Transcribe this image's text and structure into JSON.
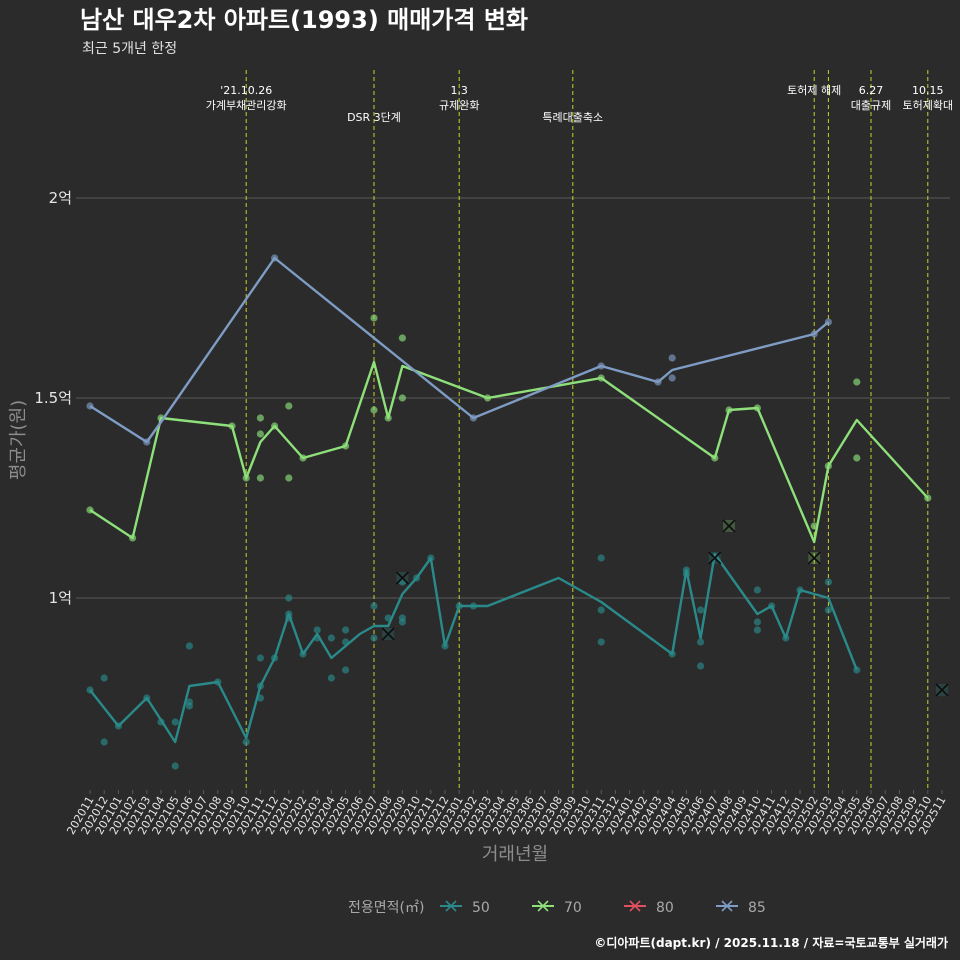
{
  "title": "남산 대우2차 아파트(1993) 매매가격 변화",
  "subtitle": "최근 5개년 한정",
  "caption": "©디아파트(dapt.kr) / 2025.11.18 / 자료=국토교통부 실거래가",
  "colors": {
    "background": "#2b2b2b",
    "grid": "#5a5a5a",
    "event_line": "#c8d22a",
    "s50": "#2a8a8a",
    "s70": "#8ee07a",
    "s80": "#e05060",
    "s85": "#7f9cc4"
  },
  "chart_data": {
    "type": "line",
    "title": "남산 대우2차 아파트(1993) 매매가격 변화",
    "xlabel": "거래년월",
    "ylabel": "평균가(원)",
    "ylim": [
      0.52,
      2.32
    ],
    "yunit": "억",
    "yticks": [
      {
        "value": 1.0,
        "label": "1억"
      },
      {
        "value": 1.5,
        "label": "1.5억"
      },
      {
        "value": 2.0,
        "label": "2억"
      }
    ],
    "categories": [
      "202011",
      "202012",
      "202101",
      "202102",
      "202103",
      "202104",
      "202105",
      "202106",
      "202107",
      "202108",
      "202109",
      "202110",
      "202111",
      "202112",
      "202201",
      "202202",
      "202203",
      "202204",
      "202205",
      "202206",
      "202207",
      "202208",
      "202209",
      "202210",
      "202211",
      "202212",
      "202301",
      "202302",
      "202303",
      "202304",
      "202305",
      "202306",
      "202307",
      "202308",
      "202309",
      "202310",
      "202311",
      "202312",
      "202401",
      "202402",
      "202403",
      "202404",
      "202405",
      "202406",
      "202407",
      "202408",
      "202409",
      "202410",
      "202411",
      "202412",
      "202501",
      "202502",
      "202503",
      "202504",
      "202505",
      "202506",
      "202507",
      "202508",
      "202509",
      "202510",
      "202511"
    ],
    "events": [
      {
        "x": "202110",
        "lines": [
          "'21.10.26",
          "가계부채관리강화"
        ],
        "row": 0
      },
      {
        "x": "202207",
        "lines": [
          "DSR 3단계"
        ],
        "row": 1
      },
      {
        "x": "202301",
        "lines": [
          "1.3",
          "규제완화"
        ],
        "row": 0
      },
      {
        "x": "202309",
        "lines": [
          "특례대출축소"
        ],
        "row": 1
      },
      {
        "x": "202502",
        "lines": [
          "토허제 해제"
        ],
        "row": 0
      },
      {
        "x": "202503",
        "lines": [],
        "row": 0
      },
      {
        "x": "202506",
        "lines": [
          "6.27",
          "대출규제"
        ],
        "row": 0
      },
      {
        "x": "202510",
        "lines": [
          "10.15",
          "토허제확대"
        ],
        "row": 0
      }
    ],
    "legend_title": "전용면적(㎡)",
    "series": [
      {
        "name": "50",
        "line": [
          [
            "202011",
            0.77
          ],
          [
            "202101",
            0.68
          ],
          [
            "202103",
            0.75
          ],
          [
            "202105",
            0.64
          ],
          [
            "202106",
            0.78
          ],
          [
            "202108",
            0.79
          ],
          [
            "202110",
            0.65
          ],
          [
            "202111",
            0.78
          ],
          [
            "202112",
            0.85
          ],
          [
            "202201",
            0.96
          ],
          [
            "202202",
            0.86
          ],
          [
            "202203",
            0.91
          ],
          [
            "202204",
            0.85
          ],
          [
            "202205",
            0.88
          ],
          [
            "202206",
            0.91
          ],
          [
            "202207",
            0.93
          ],
          [
            "202208",
            0.93
          ],
          [
            "202209",
            1.01
          ],
          [
            "202210",
            1.05
          ],
          [
            "202211",
            1.1
          ],
          [
            "202212",
            0.88
          ],
          [
            "202301",
            0.98
          ],
          [
            "202302",
            0.98
          ],
          [
            "202303",
            0.98
          ],
          [
            "202308",
            1.05
          ],
          [
            "202311",
            0.99
          ],
          [
            "202404",
            0.86
          ],
          [
            "202405",
            1.07
          ],
          [
            "202406",
            0.9
          ],
          [
            "202407",
            1.11
          ],
          [
            "202410",
            0.96
          ],
          [
            "202411",
            0.98
          ],
          [
            "202412",
            0.9
          ],
          [
            "202501",
            1.02
          ],
          [
            "202503",
            1.0
          ],
          [
            "202505",
            0.82
          ]
        ],
        "points": [
          [
            "202011",
            0.77
          ],
          [
            "202012",
            0.8
          ],
          [
            "202012",
            0.64
          ],
          [
            "202101",
            0.68
          ],
          [
            "202103",
            0.75
          ],
          [
            "202104",
            0.69
          ],
          [
            "202105",
            0.69
          ],
          [
            "202105",
            0.58
          ],
          [
            "202106",
            0.88
          ],
          [
            "202106",
            0.74
          ],
          [
            "202106",
            0.73
          ],
          [
            "202108",
            0.79
          ],
          [
            "202110",
            0.64
          ],
          [
            "202111",
            0.85
          ],
          [
            "202111",
            0.75
          ],
          [
            "202111",
            0.78
          ],
          [
            "202112",
            0.85
          ],
          [
            "202201",
            1.0
          ],
          [
            "202201",
            0.96
          ],
          [
            "202201",
            0.95
          ],
          [
            "202202",
            0.86
          ],
          [
            "202203",
            0.92
          ],
          [
            "202203",
            0.9
          ],
          [
            "202204",
            0.9
          ],
          [
            "202204",
            0.8
          ],
          [
            "202205",
            0.92
          ],
          [
            "202205",
            0.89
          ],
          [
            "202205",
            0.82
          ],
          [
            "202207",
            0.98
          ],
          [
            "202207",
            0.9
          ],
          [
            "202208",
            0.95
          ],
          [
            "202209",
            1.04
          ],
          [
            "202209",
            0.95
          ],
          [
            "202209",
            0.94
          ],
          [
            "202210",
            1.05
          ],
          [
            "202211",
            1.1
          ],
          [
            "202212",
            0.88
          ],
          [
            "202301",
            0.98
          ],
          [
            "202302",
            0.98
          ],
          [
            "202311",
            1.1
          ],
          [
            "202311",
            0.97
          ],
          [
            "202311",
            0.89
          ],
          [
            "202404",
            0.86
          ],
          [
            "202405",
            1.07
          ],
          [
            "202405",
            1.06
          ],
          [
            "202406",
            0.97
          ],
          [
            "202406",
            0.89
          ],
          [
            "202406",
            0.83
          ],
          [
            "202410",
            1.02
          ],
          [
            "202410",
            0.94
          ],
          [
            "202410",
            0.92
          ],
          [
            "202411",
            0.98
          ],
          [
            "202412",
            0.9
          ],
          [
            "202501",
            1.02
          ],
          [
            "202503",
            1.04
          ],
          [
            "202503",
            0.97
          ],
          [
            "202505",
            0.82
          ]
        ],
        "cancelled": [
          [
            "202208",
            0.91
          ],
          [
            "202209",
            1.05
          ],
          [
            "202407",
            1.1
          ],
          [
            "202511",
            0.77
          ]
        ]
      },
      {
        "name": "70",
        "line": [
          [
            "202011",
            1.22
          ],
          [
            "202102",
            1.15
          ],
          [
            "202104",
            1.45
          ],
          [
            "202109",
            1.43
          ],
          [
            "202110",
            1.3
          ],
          [
            "202111",
            1.39
          ],
          [
            "202112",
            1.43
          ],
          [
            "202202",
            1.35
          ],
          [
            "202205",
            1.38
          ],
          [
            "202207",
            1.59
          ],
          [
            "202208",
            1.45
          ],
          [
            "202209",
            1.58
          ],
          [
            "202303",
            1.5
          ],
          [
            "202311",
            1.55
          ],
          [
            "202407",
            1.35
          ],
          [
            "202408",
            1.47
          ],
          [
            "202410",
            1.475
          ],
          [
            "202502",
            1.14
          ],
          [
            "202503",
            1.33
          ],
          [
            "202505",
            1.445
          ],
          [
            "202510",
            1.25
          ]
        ],
        "points": [
          [
            "202011",
            1.22
          ],
          [
            "202102",
            1.15
          ],
          [
            "202104",
            1.45
          ],
          [
            "202109",
            1.43
          ],
          [
            "202110",
            1.3
          ],
          [
            "202111",
            1.45
          ],
          [
            "202111",
            1.41
          ],
          [
            "202111",
            1.3
          ],
          [
            "202112",
            1.43
          ],
          [
            "202201",
            1.48
          ],
          [
            "202201",
            1.3
          ],
          [
            "202202",
            1.35
          ],
          [
            "202205",
            1.38
          ],
          [
            "202207",
            1.7
          ],
          [
            "202207",
            1.47
          ],
          [
            "202208",
            1.45
          ],
          [
            "202209",
            1.65
          ],
          [
            "202209",
            1.5
          ],
          [
            "202303",
            1.5
          ],
          [
            "202311",
            1.55
          ],
          [
            "202407",
            1.35
          ],
          [
            "202408",
            1.47
          ],
          [
            "202410",
            1.475
          ],
          [
            "202502",
            1.18
          ],
          [
            "202503",
            1.33
          ],
          [
            "202505",
            1.54
          ],
          [
            "202505",
            1.35
          ],
          [
            "202510",
            1.25
          ]
        ],
        "cancelled": [
          [
            "202408",
            1.18
          ],
          [
            "202502",
            1.1
          ]
        ]
      },
      {
        "name": "80",
        "line": [],
        "points": [],
        "cancelled": []
      },
      {
        "name": "85",
        "line": [
          [
            "202011",
            1.48
          ],
          [
            "202103",
            1.39
          ],
          [
            "202104",
            1.44
          ],
          [
            "202112",
            1.85
          ],
          [
            "202302",
            1.45
          ],
          [
            "202311",
            1.58
          ],
          [
            "202403",
            1.54
          ],
          [
            "202404",
            1.57
          ],
          [
            "202502",
            1.66
          ],
          [
            "202503",
            1.69
          ]
        ],
        "points": [
          [
            "202011",
            1.48
          ],
          [
            "202103",
            1.39
          ],
          [
            "202112",
            1.85
          ],
          [
            "202302",
            1.45
          ],
          [
            "202311",
            1.58
          ],
          [
            "202403",
            1.54
          ],
          [
            "202404",
            1.6
          ],
          [
            "202404",
            1.55
          ],
          [
            "202502",
            1.66
          ],
          [
            "202503",
            1.69
          ]
        ],
        "cancelled": []
      }
    ]
  }
}
